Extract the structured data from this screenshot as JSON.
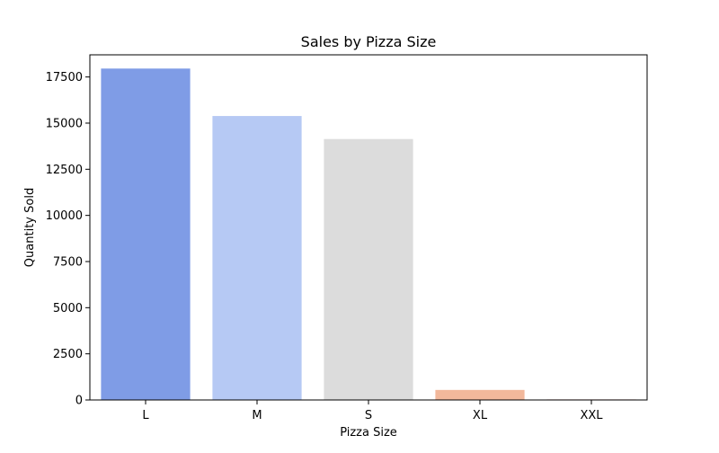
{
  "chart_data": {
    "type": "bar",
    "title": "Sales by Pizza Size",
    "xlabel": "Pizza Size",
    "ylabel": "Quantity Sold",
    "categories": [
      "L",
      "M",
      "S",
      "XL",
      "XXL"
    ],
    "values": [
      17956,
      15385,
      14137,
      544,
      28
    ],
    "colors": [
      "#7f9ce6",
      "#b6c9f4",
      "#dcdcdc",
      "#f2b89b",
      "#c96d5c"
    ],
    "ylim": [
      0,
      18700
    ],
    "yticks": [
      0,
      2500,
      5000,
      7500,
      10000,
      12500,
      15000,
      17500
    ],
    "ytick_labels": [
      "0",
      "2500",
      "5000",
      "7500",
      "10000",
      "12500",
      "15000",
      "17500"
    ],
    "grid": false,
    "legend": "none"
  }
}
